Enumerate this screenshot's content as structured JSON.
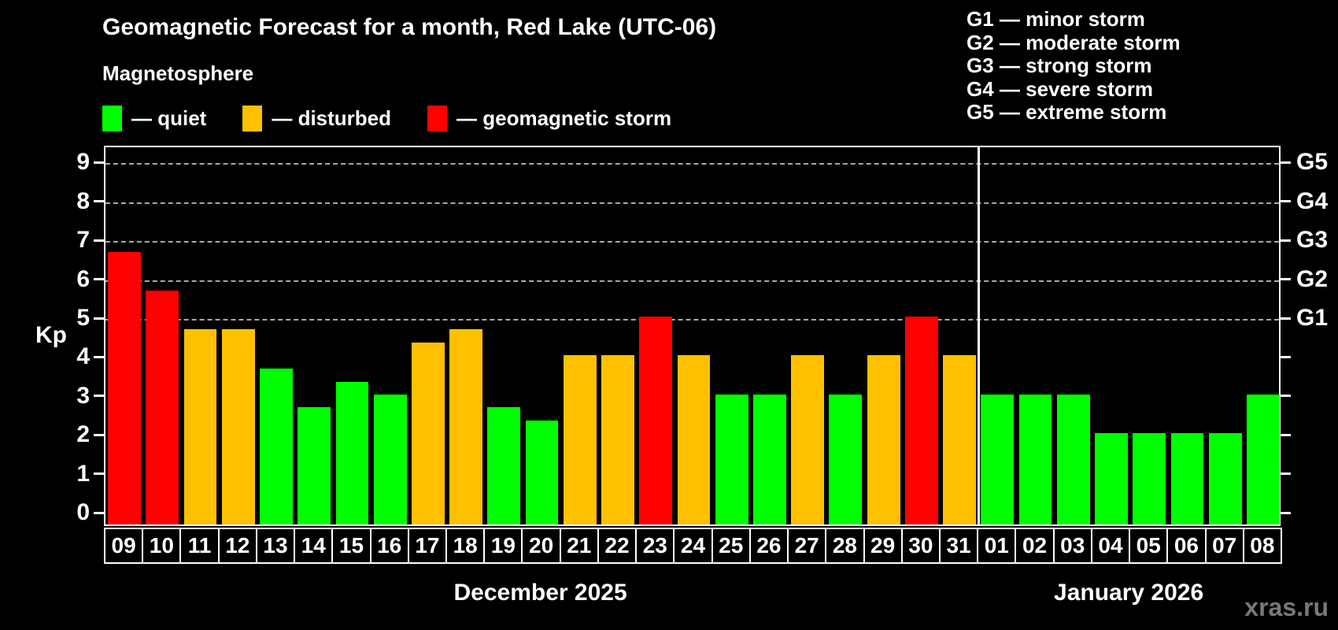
{
  "title": "Geomagnetic Forecast for a month, Red Lake (UTC-06)",
  "subtitle": "Magnetosphere",
  "legend": {
    "quiet_label": "— quiet",
    "disturbed_label": "— disturbed",
    "storm_label": "— geomagnetic storm"
  },
  "g_legend": {
    "g1": "G1 — minor storm",
    "g2": "G2 — moderate storm",
    "g3": "G3 — strong storm",
    "g4": "G4 — severe storm",
    "g5": "G5 — extreme storm"
  },
  "watermark": "xras.ru",
  "colors": {
    "quiet": "#00ff00",
    "disturbed": "#ffc000",
    "storm": "#ff0000",
    "gridline": "#a8a8a8",
    "axis": "#ffffff",
    "background": "#000000",
    "watermark": "#787878"
  },
  "chart_data": {
    "type": "bar",
    "title": "Geomagnetic Forecast for a month, Red Lake (UTC-06)",
    "xlabel": "",
    "ylabel": "Kp",
    "ylim": [
      0,
      9.4
    ],
    "yticks": [
      0,
      1,
      2,
      3,
      4,
      5,
      6,
      7,
      8,
      9
    ],
    "grid_levels": [
      5,
      6,
      7,
      8,
      9
    ],
    "right_axis_labels": [
      {
        "value": 5,
        "label": "G1"
      },
      {
        "value": 6,
        "label": "G2"
      },
      {
        "value": 7,
        "label": "G3"
      },
      {
        "value": 8,
        "label": "G4"
      },
      {
        "value": 9,
        "label": "G5"
      }
    ],
    "legend_position": "top-left",
    "grid": "dashed, G-levels only",
    "months": [
      {
        "label": "December 2025",
        "days": [
          "09",
          "10",
          "11",
          "12",
          "13",
          "14",
          "15",
          "16",
          "17",
          "18",
          "19",
          "20",
          "21",
          "22",
          "23",
          "24",
          "25",
          "26",
          "27",
          "28",
          "29",
          "30",
          "31"
        ],
        "values": [
          6.67,
          5.67,
          4.67,
          4.67,
          3.67,
          2.67,
          3.33,
          3.0,
          4.33,
          4.67,
          2.67,
          2.33,
          4.0,
          4.0,
          5.0,
          4.0,
          3.0,
          3.0,
          4.0,
          3.0,
          4.0,
          5.0,
          4.0
        ],
        "statuses": [
          "storm",
          "storm",
          "disturbed",
          "disturbed",
          "quiet",
          "quiet",
          "quiet",
          "quiet",
          "disturbed",
          "disturbed",
          "quiet",
          "quiet",
          "disturbed",
          "disturbed",
          "storm",
          "disturbed",
          "quiet",
          "quiet",
          "disturbed",
          "quiet",
          "disturbed",
          "storm",
          "disturbed"
        ]
      },
      {
        "label": "January 2026",
        "days": [
          "01",
          "02",
          "03",
          "04",
          "05",
          "06",
          "07",
          "08"
        ],
        "values": [
          3.0,
          3.0,
          3.0,
          2.0,
          2.0,
          2.0,
          2.0,
          3.0
        ],
        "statuses": [
          "quiet",
          "quiet",
          "quiet",
          "quiet",
          "quiet",
          "quiet",
          "quiet",
          "quiet"
        ]
      }
    ]
  }
}
